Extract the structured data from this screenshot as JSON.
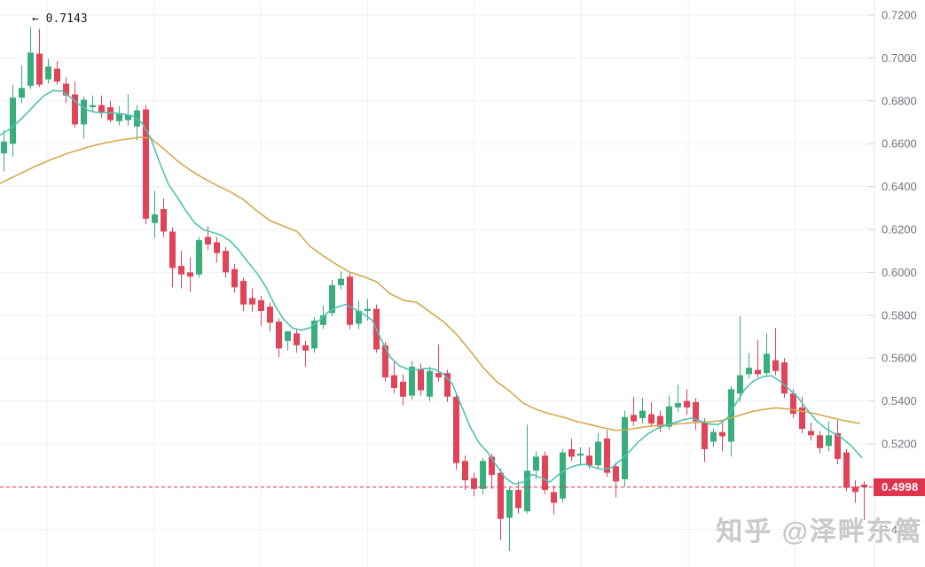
{
  "chart": {
    "watermark": "知乎 @泽畔东篱",
    "annotation": {
      "text": "← 0.7143",
      "value": "0.7143"
    },
    "price_line": {
      "label": "0.4998",
      "value": 0.4998
    },
    "y_axis": {
      "side": "right",
      "labels": [
        "0.7200",
        "0.7000",
        "0.6800",
        "0.6600",
        "0.6400",
        "0.6200",
        "0.6000",
        "0.5800",
        "0.5600",
        "0.5400",
        "0.5200",
        "0.5000",
        "0.4800"
      ]
    },
    "colors": {
      "up": "#3aad7d",
      "down": "#e14458",
      "ma_short": "#4fc2b4",
      "ma_long": "#d5a94e",
      "price_line": "#e0334e",
      "grid": "#f0f1f4",
      "axis_line": "#e4e5e9",
      "tick": "#cfd2d8",
      "tick_label": "#70757e",
      "background": "#ffffff"
    }
  },
  "chart_data": {
    "type": "candlestick",
    "y_ticks": [
      0.72,
      0.7,
      0.68,
      0.66,
      0.64,
      0.62,
      0.6,
      0.58,
      0.56,
      0.54,
      0.52,
      0.5,
      0.48
    ],
    "ylim": [
      0.465,
      0.725
    ],
    "grid": true,
    "last_price": 0.4998,
    "high_annotation": 0.7143,
    "ohlc": [
      [
        0.6555,
        0.6665,
        0.647,
        0.661
      ],
      [
        0.66,
        0.6875,
        0.654,
        0.6815
      ],
      [
        0.6815,
        0.6965,
        0.679,
        0.686
      ],
      [
        0.687,
        0.7143,
        0.6855,
        0.7025
      ],
      [
        0.702,
        0.7135,
        0.6865,
        0.6875
      ],
      [
        0.69,
        0.6995,
        0.688,
        0.696
      ],
      [
        0.695,
        0.6985,
        0.6875,
        0.689
      ],
      [
        0.688,
        0.691,
        0.679,
        0.6825
      ],
      [
        0.683,
        0.689,
        0.6675,
        0.669
      ],
      [
        0.669,
        0.682,
        0.6625,
        0.6805
      ],
      [
        0.677,
        0.6825,
        0.6745,
        0.678
      ],
      [
        0.678,
        0.6825,
        0.672,
        0.6745
      ],
      [
        0.677,
        0.68,
        0.67,
        0.671
      ],
      [
        0.6705,
        0.6775,
        0.6685,
        0.674
      ],
      [
        0.671,
        0.683,
        0.6685,
        0.6735
      ],
      [
        0.668,
        0.678,
        0.6615,
        0.6755
      ],
      [
        0.676,
        0.678,
        0.6225,
        0.625
      ],
      [
        0.623,
        0.638,
        0.616,
        0.627
      ],
      [
        0.6295,
        0.6345,
        0.6165,
        0.619
      ],
      [
        0.619,
        0.621,
        0.593,
        0.602
      ],
      [
        0.603,
        0.61,
        0.5925,
        0.599
      ],
      [
        0.6,
        0.607,
        0.591,
        0.598
      ],
      [
        0.599,
        0.6165,
        0.5975,
        0.615
      ],
      [
        0.6165,
        0.6215,
        0.6105,
        0.613
      ],
      [
        0.614,
        0.6165,
        0.6045,
        0.609
      ],
      [
        0.61,
        0.612,
        0.5975,
        0.6
      ],
      [
        0.6015,
        0.604,
        0.5905,
        0.593
      ],
      [
        0.596,
        0.5975,
        0.582,
        0.585
      ],
      [
        0.588,
        0.5925,
        0.5815,
        0.585
      ],
      [
        0.587,
        0.589,
        0.575,
        0.582
      ],
      [
        0.584,
        0.586,
        0.5725,
        0.5765
      ],
      [
        0.577,
        0.5785,
        0.5605,
        0.5645
      ],
      [
        0.568,
        0.5725,
        0.5635,
        0.5725
      ],
      [
        0.5715,
        0.5735,
        0.5625,
        0.566
      ],
      [
        0.566,
        0.568,
        0.556,
        0.5635
      ],
      [
        0.5645,
        0.579,
        0.5625,
        0.5775
      ],
      [
        0.5755,
        0.5845,
        0.5735,
        0.58
      ],
      [
        0.581,
        0.5965,
        0.5795,
        0.594
      ],
      [
        0.594,
        0.6005,
        0.592,
        0.597
      ],
      [
        0.598,
        0.6,
        0.5735,
        0.5755
      ],
      [
        0.576,
        0.5865,
        0.5735,
        0.582
      ],
      [
        0.582,
        0.5875,
        0.5775,
        0.583
      ],
      [
        0.583,
        0.585,
        0.5625,
        0.564
      ],
      [
        0.566,
        0.5675,
        0.549,
        0.551
      ],
      [
        0.552,
        0.5585,
        0.5435,
        0.546
      ],
      [
        0.549,
        0.5525,
        0.538,
        0.542
      ],
      [
        0.5425,
        0.5585,
        0.5405,
        0.556
      ],
      [
        0.555,
        0.5575,
        0.5425,
        0.545
      ],
      [
        0.542,
        0.556,
        0.54,
        0.554
      ],
      [
        0.553,
        0.5665,
        0.549,
        0.551
      ],
      [
        0.553,
        0.5545,
        0.5395,
        0.542
      ],
      [
        0.542,
        0.5435,
        0.508,
        0.511
      ],
      [
        0.512,
        0.5145,
        0.4985,
        0.503
      ],
      [
        0.504,
        0.5065,
        0.4955,
        0.499
      ],
      [
        0.499,
        0.5135,
        0.4965,
        0.512
      ],
      [
        0.514,
        0.5155,
        0.499,
        0.5055
      ],
      [
        0.5065,
        0.5085,
        0.475,
        0.485
      ],
      [
        0.4855,
        0.4995,
        0.47,
        0.4985
      ],
      [
        0.4985,
        0.5025,
        0.4875,
        0.49
      ],
      [
        0.4885,
        0.529,
        0.4875,
        0.5075
      ],
      [
        0.5075,
        0.5165,
        0.5035,
        0.514
      ],
      [
        0.5145,
        0.5165,
        0.4965,
        0.4985
      ],
      [
        0.4975,
        0.5005,
        0.487,
        0.4925
      ],
      [
        0.4945,
        0.5175,
        0.4925,
        0.516
      ],
      [
        0.5175,
        0.5225,
        0.512,
        0.514
      ],
      [
        0.5145,
        0.5185,
        0.5105,
        0.5155
      ],
      [
        0.5145,
        0.5185,
        0.5085,
        0.51
      ],
      [
        0.51,
        0.525,
        0.5085,
        0.521
      ],
      [
        0.5225,
        0.5265,
        0.5045,
        0.5065
      ],
      [
        0.5095,
        0.5115,
        0.495,
        0.5025
      ],
      [
        0.5035,
        0.5355,
        0.5,
        0.5325
      ],
      [
        0.5335,
        0.542,
        0.5285,
        0.5305
      ],
      [
        0.532,
        0.5415,
        0.5295,
        0.5355
      ],
      [
        0.5338,
        0.5395,
        0.528,
        0.5295
      ],
      [
        0.533,
        0.5355,
        0.5255,
        0.528
      ],
      [
        0.528,
        0.5425,
        0.5265,
        0.5375
      ],
      [
        0.537,
        0.5475,
        0.535,
        0.539
      ],
      [
        0.54,
        0.5455,
        0.5335,
        0.537
      ],
      [
        0.5395,
        0.5415,
        0.5265,
        0.5305
      ],
      [
        0.5305,
        0.532,
        0.5115,
        0.5175
      ],
      [
        0.521,
        0.527,
        0.5185,
        0.5255
      ],
      [
        0.5255,
        0.5305,
        0.5165,
        0.5235
      ],
      [
        0.521,
        0.547,
        0.514,
        0.5455
      ],
      [
        0.5435,
        0.5795,
        0.5395,
        0.552
      ],
      [
        0.5525,
        0.5625,
        0.5505,
        0.5555
      ],
      [
        0.5545,
        0.5685,
        0.551,
        0.5525
      ],
      [
        0.553,
        0.5715,
        0.5515,
        0.562
      ],
      [
        0.559,
        0.574,
        0.552,
        0.554
      ],
      [
        0.558,
        0.56,
        0.5415,
        0.5435
      ],
      [
        0.5435,
        0.5455,
        0.532,
        0.534
      ],
      [
        0.537,
        0.542,
        0.525,
        0.527
      ],
      [
        0.526,
        0.53,
        0.5215,
        0.524
      ],
      [
        0.524,
        0.526,
        0.5155,
        0.518
      ],
      [
        0.519,
        0.5305,
        0.5165,
        0.524
      ],
      [
        0.525,
        0.531,
        0.5105,
        0.513
      ],
      [
        0.516,
        0.5175,
        0.498,
        0.4995
      ],
      [
        0.5,
        0.503,
        0.4925,
        0.4975
      ],
      [
        0.501,
        0.5025,
        0.4845,
        0.4998
      ]
    ],
    "ma_short": [
      [
        0,
        0.664
      ],
      [
        10,
        0.6665
      ],
      [
        20,
        0.67
      ],
      [
        30,
        0.674
      ],
      [
        40,
        0.6785
      ],
      [
        50,
        0.6825
      ],
      [
        60,
        0.6848
      ],
      [
        70,
        0.6845
      ],
      [
        80,
        0.6815
      ],
      [
        90,
        0.678
      ],
      [
        100,
        0.6755
      ],
      [
        110,
        0.6745
      ],
      [
        120,
        0.6745
      ],
      [
        130,
        0.6742
      ],
      [
        140,
        0.6738
      ],
      [
        150,
        0.6728
      ],
      [
        160,
        0.6697
      ],
      [
        170,
        0.6625
      ],
      [
        180,
        0.6512
      ],
      [
        190,
        0.641
      ],
      [
        200,
        0.635
      ],
      [
        210,
        0.6285
      ],
      [
        220,
        0.6228
      ],
      [
        230,
        0.6198
      ],
      [
        240,
        0.6186
      ],
      [
        250,
        0.6172
      ],
      [
        260,
        0.6145
      ],
      [
        270,
        0.61
      ],
      [
        280,
        0.6045
      ],
      [
        290,
        0.5995
      ],
      [
        300,
        0.593
      ],
      [
        310,
        0.5845
      ],
      [
        320,
        0.578
      ],
      [
        330,
        0.574
      ],
      [
        340,
        0.573
      ],
      [
        350,
        0.5742
      ],
      [
        360,
        0.5775
      ],
      [
        370,
        0.5815
      ],
      [
        380,
        0.5838
      ],
      [
        390,
        0.585
      ],
      [
        400,
        0.5828
      ],
      [
        410,
        0.5805
      ],
      [
        420,
        0.5775
      ],
      [
        430,
        0.5685
      ],
      [
        440,
        0.5605
      ],
      [
        450,
        0.5565
      ],
      [
        460,
        0.5548
      ],
      [
        470,
        0.5545
      ],
      [
        480,
        0.5552
      ],
      [
        490,
        0.5548
      ],
      [
        500,
        0.5525
      ],
      [
        510,
        0.548
      ],
      [
        520,
        0.538
      ],
      [
        530,
        0.528
      ],
      [
        540,
        0.5205
      ],
      [
        550,
        0.516
      ],
      [
        560,
        0.5098
      ],
      [
        570,
        0.504
      ],
      [
        580,
        0.5012
      ],
      [
        590,
        0.5022
      ],
      [
        600,
        0.5058
      ],
      [
        610,
        0.5042
      ],
      [
        620,
        0.5022
      ],
      [
        630,
        0.5058
      ],
      [
        640,
        0.5085
      ],
      [
        650,
        0.51
      ],
      [
        660,
        0.5105
      ],
      [
        670,
        0.509
      ],
      [
        680,
        0.508
      ],
      [
        690,
        0.509
      ],
      [
        700,
        0.5125
      ],
      [
        710,
        0.5165
      ],
      [
        720,
        0.521
      ],
      [
        730,
        0.5245
      ],
      [
        740,
        0.527
      ],
      [
        750,
        0.5285
      ],
      [
        760,
        0.5298
      ],
      [
        770,
        0.5312
      ],
      [
        780,
        0.532
      ],
      [
        790,
        0.5306
      ],
      [
        800,
        0.5292
      ],
      [
        810,
        0.529
      ],
      [
        820,
        0.532
      ],
      [
        830,
        0.539
      ],
      [
        840,
        0.5455
      ],
      [
        850,
        0.5495
      ],
      [
        860,
        0.5513
      ],
      [
        870,
        0.5518
      ],
      [
        880,
        0.549
      ],
      [
        890,
        0.5455
      ],
      [
        900,
        0.5415
      ],
      [
        910,
        0.536
      ],
      [
        920,
        0.531
      ],
      [
        930,
        0.5275
      ],
      [
        940,
        0.525
      ],
      [
        950,
        0.5225
      ],
      [
        960,
        0.519
      ],
      [
        972,
        0.5135
      ]
    ],
    "ma_long": [
      [
        0,
        0.6415
      ],
      [
        20,
        0.6455
      ],
      [
        40,
        0.6495
      ],
      [
        60,
        0.653
      ],
      [
        80,
        0.656
      ],
      [
        100,
        0.6585
      ],
      [
        120,
        0.6605
      ],
      [
        140,
        0.662
      ],
      [
        158,
        0.663
      ],
      [
        170,
        0.6625
      ],
      [
        185,
        0.6575
      ],
      [
        200,
        0.652
      ],
      [
        215,
        0.6475
      ],
      [
        230,
        0.6438
      ],
      [
        245,
        0.6405
      ],
      [
        260,
        0.6375
      ],
      [
        275,
        0.6338
      ],
      [
        290,
        0.6285
      ],
      [
        305,
        0.624
      ],
      [
        320,
        0.6215
      ],
      [
        335,
        0.619
      ],
      [
        350,
        0.612
      ],
      [
        365,
        0.6075
      ],
      [
        380,
        0.6035
      ],
      [
        395,
        0.6
      ],
      [
        410,
        0.598
      ],
      [
        425,
        0.5955
      ],
      [
        440,
        0.59
      ],
      [
        455,
        0.587
      ],
      [
        470,
        0.586
      ],
      [
        485,
        0.5815
      ],
      [
        500,
        0.577
      ],
      [
        515,
        0.571
      ],
      [
        530,
        0.5635
      ],
      [
        545,
        0.5555
      ],
      [
        560,
        0.549
      ],
      [
        575,
        0.5445
      ],
      [
        590,
        0.539
      ],
      [
        605,
        0.536
      ],
      [
        620,
        0.534
      ],
      [
        635,
        0.5325
      ],
      [
        650,
        0.5305
      ],
      [
        665,
        0.529
      ],
      [
        680,
        0.5275
      ],
      [
        695,
        0.5262
      ],
      [
        710,
        0.5268
      ],
      [
        725,
        0.5278
      ],
      [
        740,
        0.5285
      ],
      [
        755,
        0.529
      ],
      [
        770,
        0.5295
      ],
      [
        785,
        0.53
      ],
      [
        800,
        0.5302
      ],
      [
        815,
        0.531
      ],
      [
        830,
        0.5328
      ],
      [
        845,
        0.5348
      ],
      [
        860,
        0.536
      ],
      [
        875,
        0.5368
      ],
      [
        890,
        0.5362
      ],
      [
        905,
        0.5352
      ],
      [
        920,
        0.534
      ],
      [
        935,
        0.5325
      ],
      [
        950,
        0.531
      ],
      [
        960,
        0.5302
      ],
      [
        970,
        0.5295
      ]
    ]
  }
}
